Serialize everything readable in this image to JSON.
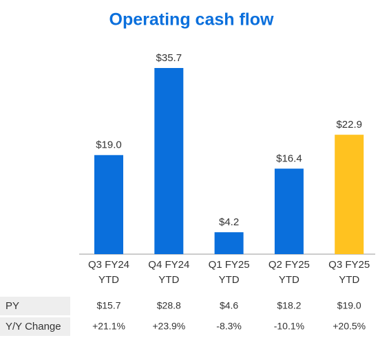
{
  "chart_data": {
    "type": "bar",
    "title": "Operating cash flow",
    "categories": [
      "Q3 FY24 YTD",
      "Q4 FY24 YTD",
      "Q1 FY25 YTD",
      "Q2 FY25 YTD",
      "Q3 FY25 YTD"
    ],
    "values": [
      19.0,
      35.7,
      4.2,
      16.4,
      22.9
    ],
    "value_labels": [
      "$19.0",
      "$35.7",
      "$4.2",
      "$16.4",
      "$22.9"
    ],
    "colors": [
      "#0a6fdc",
      "#0a6fdc",
      "#0a6fdc",
      "#0a6fdc",
      "#ffc220"
    ]
  },
  "table": {
    "rows": [
      [
        "PY",
        "$15.7",
        "$28.8",
        "$4.6",
        "$18.2",
        "$19.0"
      ],
      [
        "Y/Y Change",
        "+21.1%",
        "+23.9%",
        "-8.3%",
        "-10.1%",
        "+20.5%"
      ]
    ]
  }
}
